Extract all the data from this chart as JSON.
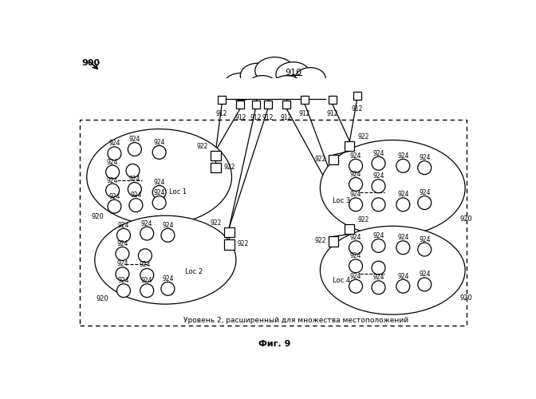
{
  "title": "Фиг. 9",
  "label_900": "900",
  "label_910": "910",
  "label_912": "912",
  "label_920": "920",
  "label_922": "922",
  "label_924": "924",
  "dashed_box_label": "Уровень 2, расширенный для множества местоположений",
  "bg_color": "#ffffff",
  "line_color": "#000000"
}
